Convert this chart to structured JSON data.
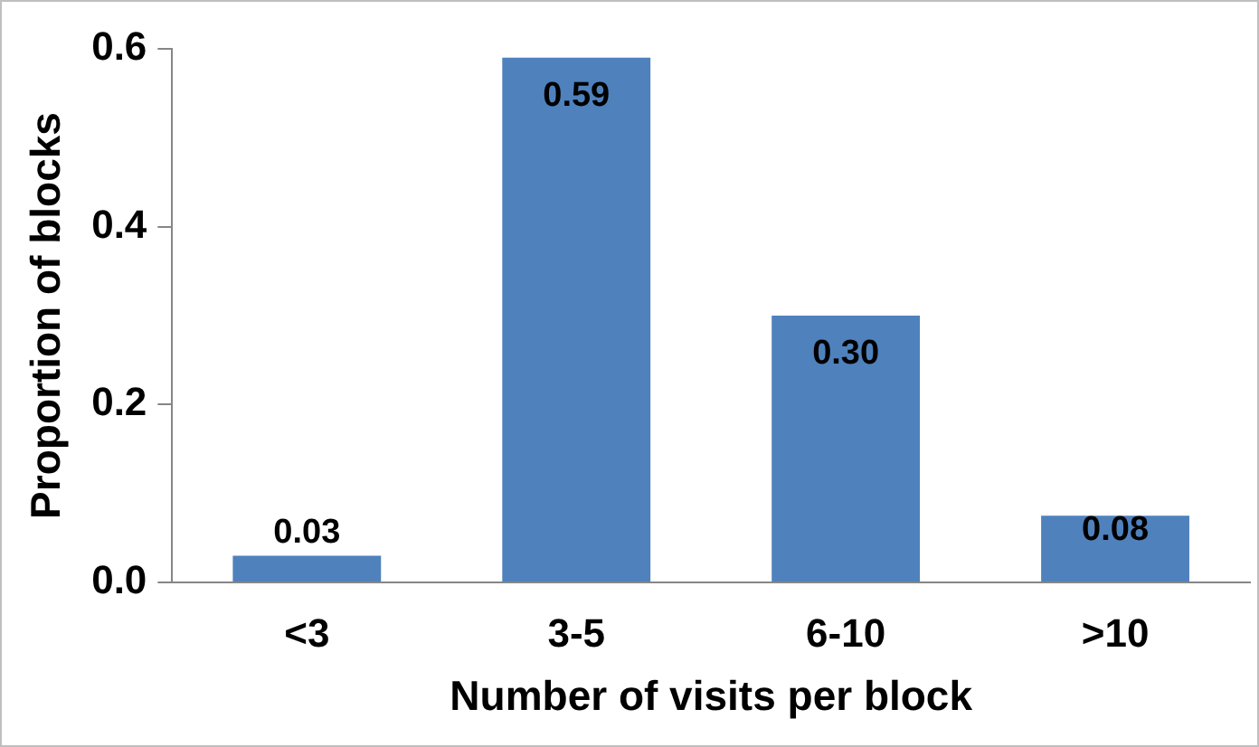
{
  "chart_data": {
    "type": "bar",
    "xlabel": "Number of visits per block",
    "ylabel": "Proportion of blocks",
    "categories": [
      "<3",
      "3-5",
      "6-10",
      ">10"
    ],
    "values": [
      0.03,
      0.59,
      0.3,
      0.075
    ],
    "value_labels": [
      "0.03",
      "0.59",
      "0.30",
      "0.08"
    ],
    "color": "#4f81bd",
    "ylim": [
      0,
      0.6
    ],
    "yticks": [
      {
        "value": 0,
        "label": "0.0"
      },
      {
        "value": 0.2,
        "label": "0.2"
      },
      {
        "value": 0.4,
        "label": "0.4"
      },
      {
        "value": 0.6,
        "label": "0.6"
      }
    ],
    "grid": false,
    "legend": false
  }
}
